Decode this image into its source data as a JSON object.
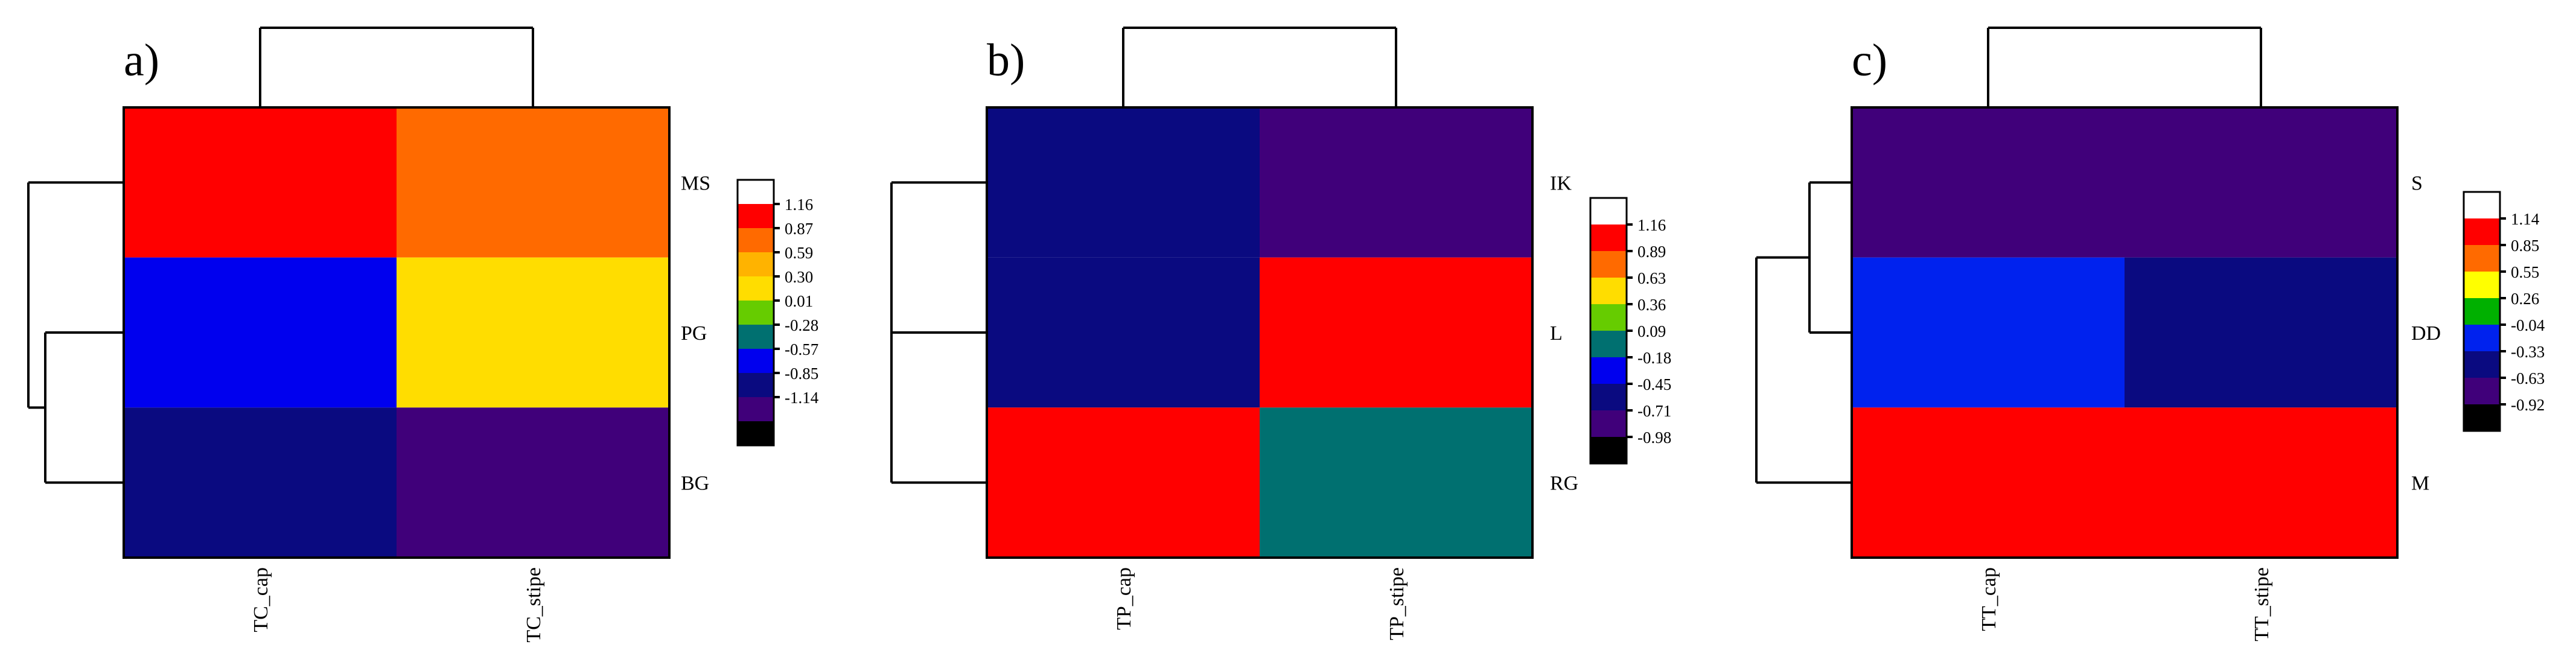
{
  "chart_data": [
    {
      "type": "heatmap",
      "panel_label": "a)",
      "columns": [
        "TC_cap",
        "TC_stipe"
      ],
      "rows": [
        "MS",
        "PG",
        "BG"
      ],
      "values": [
        [
          1.16,
          0.87
        ],
        [
          -0.57,
          0.59
        ],
        [
          -0.85,
          -1.0
        ]
      ],
      "legend_ticks": [
        "1.16",
        "0.87",
        "0.59",
        "0.30",
        "0.01",
        "-0.28",
        "-0.57",
        "-0.85",
        "-1.14"
      ],
      "colors": [
        "#ffffff",
        "#ff0000",
        "#ff6a00",
        "#ffb300",
        "#ffdd00",
        "#66cc00",
        "#007070",
        "#0000ee",
        "#0a0a80",
        "#40007a",
        "#000000"
      ],
      "cell_colors": [
        [
          "#ff0000",
          "#ff6a00"
        ],
        [
          "#0000ee",
          "#ffdd00"
        ],
        [
          "#0a0a80",
          "#40007a"
        ]
      ],
      "column_dendrogram": "TC_cap+TC_stipe",
      "row_dendrogram": "MS | (PG, BG)"
    },
    {
      "type": "heatmap",
      "panel_label": "b)",
      "columns": [
        "TP_cap",
        "TP_stipe"
      ],
      "rows": [
        "IK",
        "L",
        "RG"
      ],
      "values": [
        [
          -0.71,
          -0.98
        ],
        [
          -0.71,
          1.16
        ],
        [
          1.16,
          0.09
        ]
      ],
      "legend_ticks": [
        "1.16",
        "0.89",
        "0.63",
        "0.36",
        "0.09",
        "-0.18",
        "-0.45",
        "-0.71",
        "-0.98"
      ],
      "colors": [
        "#ffffff",
        "#ff0000",
        "#ff6a00",
        "#ffdd00",
        "#66cc00",
        "#007070",
        "#0000ee",
        "#0a0a80",
        "#40007a",
        "#000000"
      ],
      "cell_colors": [
        [
          "#0a0a80",
          "#40007a"
        ],
        [
          "#0a0a80",
          "#ff0000"
        ],
        [
          "#ff0000",
          "#007070"
        ]
      ],
      "column_dendrogram": "TP_cap+TP_stipe",
      "row_dendrogram": "(IK, L) | RG"
    },
    {
      "type": "heatmap",
      "panel_label": "c)",
      "columns": [
        "TT_cap",
        "TT_stipe"
      ],
      "rows": [
        "S",
        "DD",
        "M"
      ],
      "values": [
        [
          -0.63,
          -0.63
        ],
        [
          -0.33,
          -0.63
        ],
        [
          1.14,
          1.14
        ]
      ],
      "legend_ticks": [
        "1.14",
        "0.85",
        "0.55",
        "0.26",
        "-0.04",
        "-0.33",
        "-0.63",
        "-0.92"
      ],
      "colors": [
        "#ffffff",
        "#ff0000",
        "#ff6a00",
        "#ffff00",
        "#00b000",
        "#0022ee",
        "#0a0a80",
        "#40007a",
        "#000000"
      ],
      "cell_colors": [
        [
          "#40007a",
          "#40007a"
        ],
        [
          "#0022ee",
          "#0a0a80"
        ],
        [
          "#ff0000",
          "#ff0000"
        ]
      ],
      "column_dendrogram": "TT_cap+TT_stipe",
      "row_dendrogram": "(S, DD) | M"
    }
  ]
}
